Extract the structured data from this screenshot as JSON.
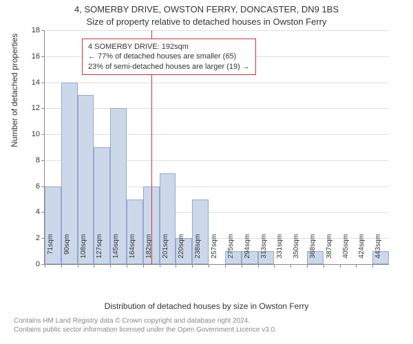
{
  "title_main": "4, SOMERBY DRIVE, OWSTON FERRY, DONCASTER, DN9 1BS",
  "title_sub": "Size of property relative to detached houses in Owston Ferry",
  "y_axis_label": "Number of detached properties",
  "x_axis_label": "Distribution of detached houses by size in Owston Ferry",
  "footer_line1": "Contains HM Land Registry data © Crown copyright and database right 2024.",
  "footer_line2": "Contains public sector information licensed under the Open Government Licence v3.0.",
  "info_box": {
    "line1": "4 SOMERBY DRIVE: 192sqm",
    "line2": "← 77% of detached houses are smaller (65)",
    "line3": "23% of semi-detached houses are larger (19) →"
  },
  "chart": {
    "type": "histogram",
    "bar_fill": "#ccd8ea",
    "bar_stroke": "#92a8cc",
    "marker_color": "#cc3333",
    "grid_color": "#dddddd",
    "axis_color": "#888888",
    "background_color": "#ffffff",
    "ylim": [
      0,
      18
    ],
    "ytick_step": 2,
    "yticks": [
      0,
      2,
      4,
      6,
      8,
      10,
      12,
      14,
      16,
      18
    ],
    "x_labels": [
      "71sqm",
      "90sqm",
      "108sqm",
      "127sqm",
      "145sqm",
      "164sqm",
      "182sqm",
      "201sqm",
      "220sqm",
      "238sqm",
      "257sqm",
      "275sqm",
      "294sqm",
      "313sqm",
      "331sqm",
      "350sqm",
      "368sqm",
      "387sqm",
      "405sqm",
      "424sqm",
      "443sqm"
    ],
    "values": [
      6,
      14,
      13,
      9,
      12,
      5,
      6,
      7,
      2,
      5,
      0,
      1,
      1,
      1,
      0,
      0,
      1,
      0,
      0,
      0,
      1
    ],
    "marker_x_index": 6.5
  }
}
